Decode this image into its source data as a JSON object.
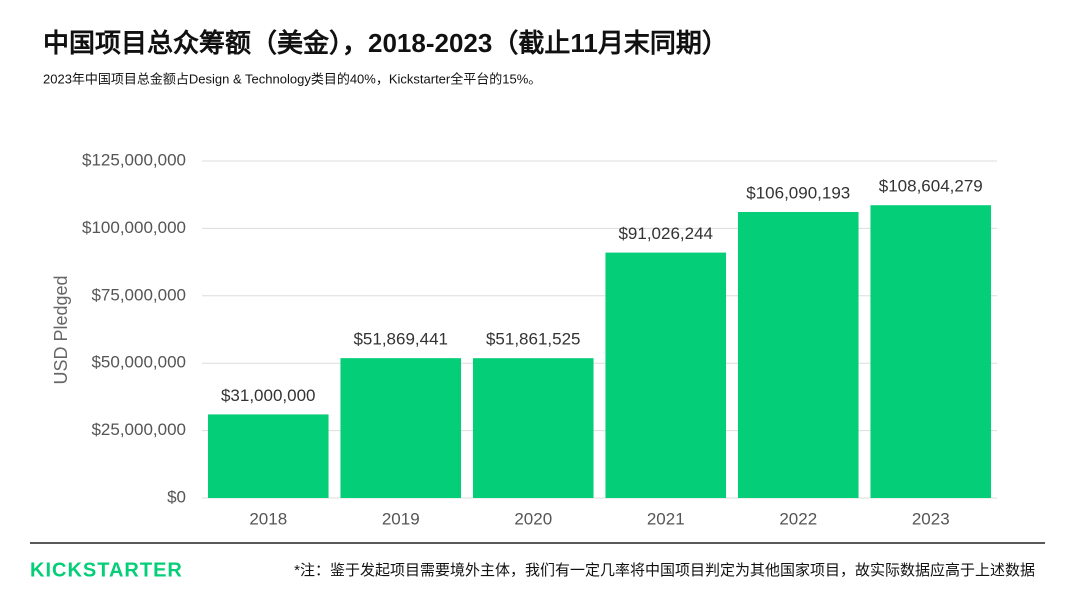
{
  "chart_data": {
    "type": "bar",
    "title": "中国项目总众筹额（美金），2018-2023（截止11月末同期）",
    "subtitle": "2023年中国项目总金额占Design & Technology类目的40%，Kickstarter全平台的15%。",
    "y_label": "USD Pledged",
    "categories": [
      "2018",
      "2019",
      "2020",
      "2021",
      "2022",
      "2023"
    ],
    "values": [
      31000000,
      51869441,
      51861525,
      91026244,
      106090193,
      108604279
    ],
    "value_labels": [
      "$31,000,000",
      "$51,869,441",
      "$51,861,525",
      "$91,026,244",
      "$106,090,193",
      "$108,604,279"
    ],
    "color": "#05ce78",
    "ylim": [
      0,
      125000000
    ],
    "yticks": [
      {
        "value": 0,
        "label": "$0"
      },
      {
        "value": 25000000,
        "label": "$25,000,000"
      },
      {
        "value": 50000000,
        "label": "$50,000,000"
      },
      {
        "value": 75000000,
        "label": "$75,000,000"
      },
      {
        "value": 100000000,
        "label": "$100,000,000"
      },
      {
        "value": 125000000,
        "label": "$125,000,000"
      }
    ],
    "grid": true
  },
  "footer": {
    "logo": "KICKSTARTER",
    "note": "*注：鉴于发起项目需要境外主体，我们有一定几率将中国项目判定为其他国家项目，故实际数据应高于上述数据"
  }
}
